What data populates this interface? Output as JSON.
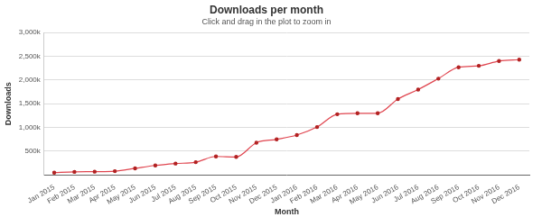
{
  "chart_data": {
    "type": "line",
    "title": "Downloads per month",
    "subtitle": "Click and drag in the plot to zoom in",
    "x_label": "Month",
    "y_label": "Downloads",
    "categories": [
      "Jan 2015",
      "Feb 2015",
      "Mar 2015",
      "Apr 2015",
      "May 2015",
      "Jun 2015",
      "Jul 2015",
      "Aug 2015",
      "Sep 2015",
      "Oct 2015",
      "Nov 2015",
      "Dec 2015",
      "Jan 2016",
      "Feb 2016",
      "Mar 2016",
      "Apr 2016",
      "May 2016",
      "Jun 2016",
      "Jul 2016",
      "Aug 2016",
      "Sep 2016",
      "Oct 2016",
      "Nov 2016",
      "Dec 2016"
    ],
    "values": [
      50000,
      65000,
      70000,
      80000,
      140000,
      200000,
      240000,
      270000,
      390000,
      380000,
      680000,
      750000,
      840000,
      1010000,
      1280000,
      1300000,
      1300000,
      1600000,
      1800000,
      2030000,
      2270000,
      2300000,
      2400000,
      2430000
    ],
    "color": "#e0454f",
    "marker": "circle",
    "line_style": "solid",
    "ylim": [
      0,
      3000000
    ],
    "yticks": [
      {
        "value": 500000,
        "label": "500k"
      },
      {
        "value": 1000000,
        "label": "1,000k"
      },
      {
        "value": 1500000,
        "label": "1,500k"
      },
      {
        "value": 2000000,
        "label": "2,000k"
      },
      {
        "value": 2500000,
        "label": "2,500k"
      },
      {
        "value": 3000000,
        "label": "3,000k"
      }
    ],
    "grid": true
  }
}
